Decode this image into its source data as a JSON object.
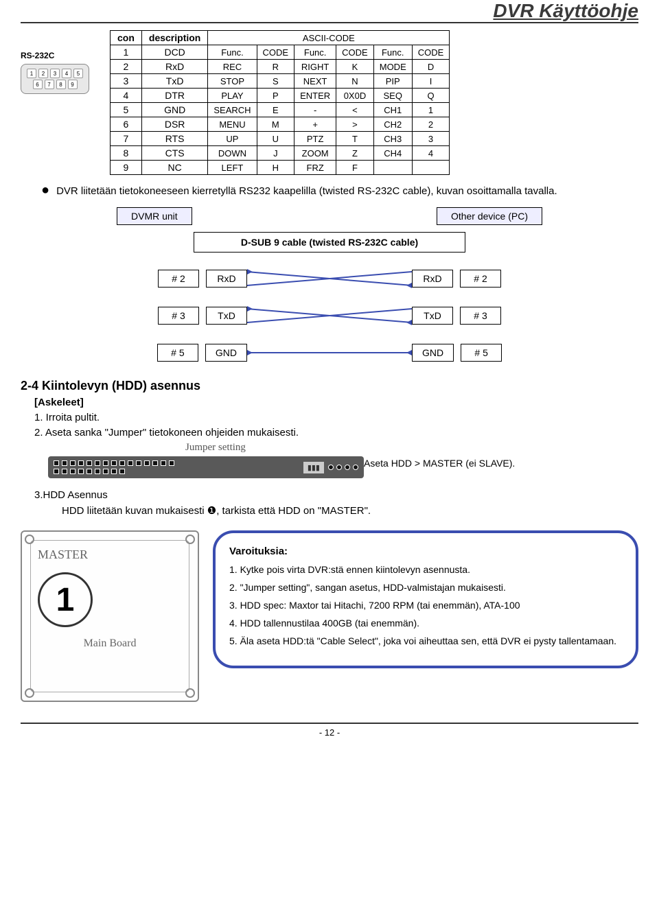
{
  "page": {
    "header_title": "DVR Käyttöohje",
    "footer": "- 12 -"
  },
  "connector_label": "RS-232C",
  "pin_table": {
    "headers": [
      "con",
      "description"
    ],
    "rows": [
      [
        "1",
        "DCD"
      ],
      [
        "2",
        "RxD"
      ],
      [
        "3",
        "TxD"
      ],
      [
        "4",
        "DTR"
      ],
      [
        "5",
        "GND"
      ],
      [
        "6",
        "DSR"
      ],
      [
        "7",
        "RTS"
      ],
      [
        "8",
        "CTS"
      ],
      [
        "9",
        "NC"
      ]
    ]
  },
  "ascii_table": {
    "title": "ASCII-CODE",
    "col_headers": [
      "Func.",
      "CODE",
      "Func.",
      "CODE",
      "Func.",
      "CODE"
    ],
    "rows": [
      [
        "REC",
        "R",
        "RIGHT",
        "K",
        "MODE",
        "D"
      ],
      [
        "STOP",
        "S",
        "NEXT",
        "N",
        "PIP",
        "I"
      ],
      [
        "PLAY",
        "P",
        "ENTER",
        "0X0D",
        "SEQ",
        "Q"
      ],
      [
        "SEARCH",
        "E",
        "-",
        "<",
        "CH1",
        "1"
      ],
      [
        "MENU",
        "M",
        "+",
        ">",
        "CH2",
        "2"
      ],
      [
        "UP",
        "U",
        "PTZ",
        "T",
        "CH3",
        "3"
      ],
      [
        "DOWN",
        "J",
        "ZOOM",
        "Z",
        "CH4",
        "4"
      ],
      [
        "LEFT",
        "H",
        "FRZ",
        "F",
        "",
        ""
      ]
    ]
  },
  "bullet_text": "DVR liitetään tietokoneeseen kierretyllä RS232 kaapelilla (twisted RS-232C cable), kuvan osoittamalla tavalla.",
  "cable": {
    "left_box": "DVMR unit",
    "right_box": "Other device (PC)",
    "dsub_label": "D-SUB 9 cable (twisted RS-232C cable)",
    "rows": [
      {
        "lnum": "# 2",
        "lsig": "RxD",
        "rsig": "RxD",
        "rnum": "# 2"
      },
      {
        "lnum": "# 3",
        "lsig": "TxD",
        "rsig": "TxD",
        "rnum": "# 3"
      },
      {
        "lnum": "# 5",
        "lsig": "GND",
        "rsig": "GND",
        "rnum": "# 5"
      }
    ]
  },
  "section": {
    "title": "2-4 Kiintolevyn (HDD) asennus",
    "steps_label": "[Askeleet]",
    "step1": "1. Irroita pultit.",
    "step2": "2. Aseta sanka \"Jumper\" tietokoneen ohjeiden mukaisesti.",
    "jumper_label": "Jumper setting",
    "aseta_hdd": "Aseta HDD > MASTER (ei SLAVE).",
    "step3_label": "3.HDD       Asennus",
    "step3_text": "HDD liitetään kuvan mukaisesti ❶, tarkista että HDD on \"MASTER\"."
  },
  "master": {
    "label": "MASTER",
    "number": "1",
    "board": "Main Board"
  },
  "warnings": {
    "title": "Varoituksia:",
    "items": [
      "1. Kytke pois virta DVR:stä ennen kiintolevyn asennusta.",
      "2. \"Jumper setting\", sangan asetus, HDD-valmistajan mukaisesti.",
      "3. HDD spec: Maxtor tai Hitachi, 7200 RPM (tai enemmän), ATA-100",
      "4. HDD tallennustilaa 400GB (tai enemmän).",
      "5. Äla aseta HDD:tä \"Cable Select\", joka voi aiheuttaa sen, että DVR ei pysty tallentamaan."
    ]
  },
  "colors": {
    "header_text": "#3a3a3a",
    "rule": "#333333",
    "warn_border": "#3a4db0",
    "boxlabel_bg": "#eef"
  }
}
